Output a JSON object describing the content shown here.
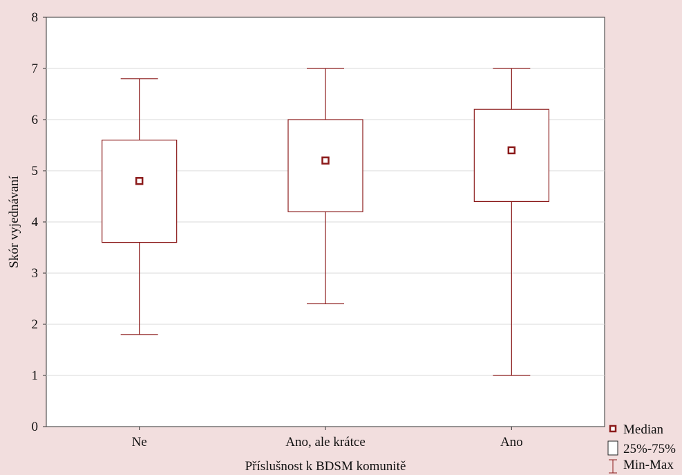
{
  "colors": {
    "background": "#f2dede",
    "plot_area": "#ffffff",
    "box_stroke": "#8b1a1a",
    "gridline": "#d9d9d9"
  },
  "chart_data": {
    "type": "boxplot",
    "title": "",
    "xlabel": "Příslušnost k BDSM komunitě",
    "ylabel": "Skór vyjednávaní",
    "ylim": [
      0,
      8
    ],
    "yticks": [
      "0",
      "1",
      "2",
      "3",
      "4",
      "5",
      "6",
      "7",
      "8"
    ],
    "grid": "horizontal",
    "legend_position": "bottom-right",
    "categories": [
      "Ne",
      "Ano, ale krátce",
      "Ano"
    ],
    "boxes": [
      {
        "category": "Ne",
        "min": 1.8,
        "q1": 3.6,
        "median": 4.8,
        "q3": 5.6,
        "max": 6.8
      },
      {
        "category": "Ano, ale krátce",
        "min": 2.4,
        "q1": 4.2,
        "median": 5.2,
        "q3": 6.0,
        "max": 7.0
      },
      {
        "category": "Ano",
        "min": 1.0,
        "q1": 4.4,
        "median": 5.4,
        "q3": 6.2,
        "max": 7.0
      }
    ],
    "legend": [
      {
        "symbol": "median-marker",
        "label": "Median"
      },
      {
        "symbol": "box",
        "label": "25%-75%"
      },
      {
        "symbol": "whisker",
        "label": "Min-Max"
      }
    ]
  }
}
